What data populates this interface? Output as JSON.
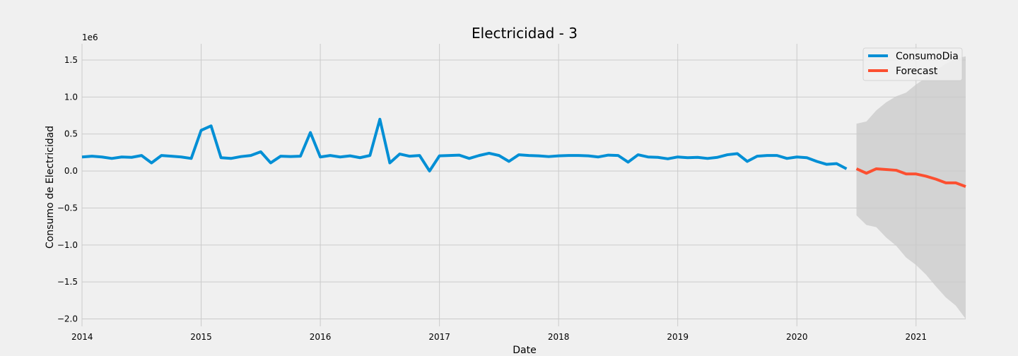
{
  "chart_data": {
    "type": "line",
    "title": "Electricidad - 3",
    "xlabel": "Date",
    "ylabel": "Consumo de Electricidad",
    "y_offset_label": "1e6",
    "ylim": [
      -2.1,
      1.72
    ],
    "xlim": [
      "2014-01-01",
      "2021-06-01"
    ],
    "grid": true,
    "legend_position": "top-right",
    "x_ticks": [
      "2014",
      "2015",
      "2016",
      "2017",
      "2018",
      "2019",
      "2020",
      "2021"
    ],
    "y_ticks": [
      "1.5",
      "1.0",
      "0.5",
      "0.0",
      "−0.5",
      "−1.0",
      "−1.5",
      "−2.0"
    ],
    "y_tick_values": [
      1.5,
      1.0,
      0.5,
      0.0,
      -0.5,
      -1.0,
      -1.5,
      -2.0
    ],
    "colors": {
      "observed": "#008fd5",
      "forecast": "#fc4f30",
      "band": "#c9c9c9",
      "grid": "#cbcbcb",
      "background": "#f0f0f0"
    },
    "series": [
      {
        "name": "ConsumoDia",
        "x": [
          "2014-01",
          "2014-02",
          "2014-03",
          "2014-04",
          "2014-05",
          "2014-06",
          "2014-07",
          "2014-08",
          "2014-09",
          "2014-10",
          "2014-11",
          "2014-12",
          "2015-01",
          "2015-02",
          "2015-03",
          "2015-04",
          "2015-05",
          "2015-06",
          "2015-07",
          "2015-08",
          "2015-09",
          "2015-10",
          "2015-11",
          "2015-12",
          "2016-01",
          "2016-02",
          "2016-03",
          "2016-04",
          "2016-05",
          "2016-06",
          "2016-07",
          "2016-08",
          "2016-09",
          "2016-10",
          "2016-11",
          "2016-12",
          "2017-01",
          "2017-02",
          "2017-03",
          "2017-04",
          "2017-05",
          "2017-06",
          "2017-07",
          "2017-08",
          "2017-09",
          "2017-10",
          "2017-11",
          "2017-12",
          "2018-01",
          "2018-02",
          "2018-03",
          "2018-04",
          "2018-05",
          "2018-06",
          "2018-07",
          "2018-08",
          "2018-09",
          "2018-10",
          "2018-11",
          "2018-12",
          "2019-01",
          "2019-02",
          "2019-03",
          "2019-04",
          "2019-05",
          "2019-06",
          "2019-07",
          "2019-08",
          "2019-09",
          "2019-10",
          "2019-11",
          "2019-12",
          "2020-01",
          "2020-02",
          "2020-03",
          "2020-04",
          "2020-05",
          "2020-06"
        ],
        "values": [
          0.19,
          0.2,
          0.19,
          0.17,
          0.19,
          0.185,
          0.21,
          0.11,
          0.21,
          0.2,
          0.19,
          0.17,
          0.55,
          0.61,
          0.18,
          0.17,
          0.195,
          0.21,
          0.26,
          0.11,
          0.2,
          0.195,
          0.2,
          0.52,
          0.19,
          0.21,
          0.19,
          0.205,
          0.18,
          0.21,
          0.7,
          0.11,
          0.23,
          0.2,
          0.21,
          0.0,
          0.205,
          0.21,
          0.215,
          0.17,
          0.21,
          0.24,
          0.21,
          0.13,
          0.22,
          0.21,
          0.205,
          0.195,
          0.205,
          0.21,
          0.21,
          0.205,
          0.19,
          0.215,
          0.21,
          0.12,
          0.22,
          0.19,
          0.185,
          0.165,
          0.19,
          0.18,
          0.185,
          0.17,
          0.185,
          0.22,
          0.235,
          0.13,
          0.2,
          0.21,
          0.21,
          0.17,
          0.19,
          0.18,
          0.13,
          0.09,
          0.1,
          0.03
        ]
      },
      {
        "name": "Forecast",
        "x": [
          "2020-07",
          "2020-08",
          "2020-09",
          "2020-10",
          "2020-11",
          "2020-12",
          "2021-01",
          "2021-02",
          "2021-03",
          "2021-04",
          "2021-05",
          "2021-06"
        ],
        "values": [
          0.03,
          -0.03,
          0.03,
          0.02,
          0.01,
          -0.04,
          -0.04,
          -0.07,
          -0.11,
          -0.16,
          -0.16,
          -0.21
        ],
        "lower": [
          -0.6,
          -0.73,
          -0.76,
          -0.9,
          -1.01,
          -1.17,
          -1.27,
          -1.4,
          -1.56,
          -1.71,
          -1.82,
          -2.0
        ],
        "upper": [
          0.64,
          0.67,
          0.82,
          0.93,
          1.01,
          1.06,
          1.17,
          1.26,
          1.36,
          1.45,
          1.52,
          1.55
        ]
      }
    ]
  }
}
